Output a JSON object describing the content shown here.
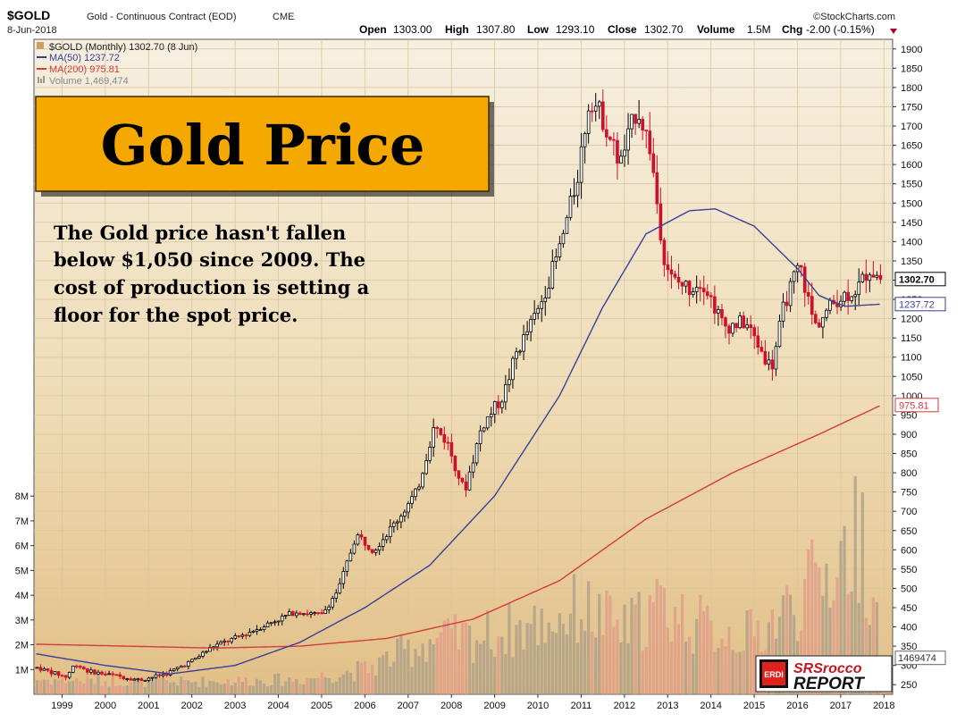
{
  "header": {
    "symbol": "$GOLD",
    "name": "Gold - Continuous Contract (EOD)",
    "exchange": "CME",
    "date": "8-Jun-2018",
    "source": "©StockCharts.com",
    "open_label": "Open",
    "open": "1303.00",
    "high_label": "High",
    "high": "1307.80",
    "low_label": "Low",
    "low": "1293.10",
    "close_label": "Close",
    "close": "1302.70",
    "volume_label": "Volume",
    "volume": "1.5M",
    "chg_label": "Chg",
    "chg": "-2.00 (-0.15%)"
  },
  "legend": {
    "main": "$GOLD (Monthly) 1302.70 (8 Jun)",
    "ma50": "MA(50) 1237.72",
    "ma200": "MA(200) 975.81",
    "volume": "Volume 1,469,474"
  },
  "title_box": {
    "text": "Gold Price"
  },
  "annotation": {
    "lines": [
      "The Gold price hasn't fallen",
      "below $1,050 since 2009.  The",
      "cost of production is setting a",
      "floor for the spot price."
    ]
  },
  "price_tags": {
    "close": "1302.70",
    "ma50": "1237.72",
    "ma200": "975.81",
    "volume": "1469474"
  },
  "logo": {
    "badge": "ERDI",
    "line1": "SRSrocco",
    "line2": "REPORT"
  },
  "colors": {
    "background_top": "#f5eedd",
    "background_bottom": "#e2c08a",
    "up_candle": "#000000",
    "down_candle": "#d0102a",
    "ma50": "#3a3f9a",
    "ma200": "#d63a3a",
    "title_box": "#f5a800"
  },
  "chart_data": {
    "type": "candlestick",
    "interval": "monthly",
    "x_ticks": [
      "1999",
      "2000",
      "2001",
      "2002",
      "2003",
      "2004",
      "2005",
      "2006",
      "2007",
      "2008",
      "2009",
      "2010",
      "2011",
      "2012",
      "2013",
      "2014",
      "2015",
      "2016",
      "2017",
      "2018"
    ],
    "y_ticks": [
      250,
      300,
      350,
      400,
      450,
      500,
      550,
      600,
      650,
      700,
      750,
      800,
      850,
      900,
      950,
      1000,
      1050,
      1100,
      1150,
      1200,
      1250,
      1300,
      1350,
      1400,
      1450,
      1500,
      1550,
      1600,
      1650,
      1700,
      1750,
      1800,
      1850,
      1900
    ],
    "ylim": [
      225,
      1925
    ],
    "volume_ticks": [
      "1M",
      "2M",
      "3M",
      "4M",
      "5M",
      "6M",
      "7M",
      "8M"
    ],
    "volume_lim": [
      0,
      8.8
    ],
    "price_anchors": [
      {
        "t": 1998.9,
        "p": 295
      },
      {
        "t": 1999.6,
        "p": 270
      },
      {
        "t": 1999.8,
        "p": 305
      },
      {
        "t": 2000.1,
        "p": 285
      },
      {
        "t": 2000.9,
        "p": 270
      },
      {
        "t": 2001.3,
        "p": 262
      },
      {
        "t": 2001.9,
        "p": 278
      },
      {
        "t": 2002.5,
        "p": 312
      },
      {
        "t": 2003.0,
        "p": 350
      },
      {
        "t": 2003.6,
        "p": 375
      },
      {
        "t": 2004.2,
        "p": 405
      },
      {
        "t": 2004.9,
        "p": 440
      },
      {
        "t": 2005.5,
        "p": 430
      },
      {
        "t": 2005.9,
        "p": 500
      },
      {
        "t": 2006.3,
        "p": 640
      },
      {
        "t": 2006.7,
        "p": 600
      },
      {
        "t": 2007.2,
        "p": 670
      },
      {
        "t": 2007.7,
        "p": 750
      },
      {
        "t": 2008.1,
        "p": 920
      },
      {
        "t": 2008.4,
        "p": 880
      },
      {
        "t": 2008.8,
        "p": 750
      },
      {
        "t": 2009.2,
        "p": 920
      },
      {
        "t": 2009.7,
        "p": 1000
      },
      {
        "t": 2010.0,
        "p": 1110
      },
      {
        "t": 2010.5,
        "p": 1220
      },
      {
        "t": 2011.0,
        "p": 1380
      },
      {
        "t": 2011.4,
        "p": 1560
      },
      {
        "t": 2011.7,
        "p": 1780
      },
      {
        "t": 2012.0,
        "p": 1720
      },
      {
        "t": 2012.4,
        "p": 1600
      },
      {
        "t": 2012.8,
        "p": 1750
      },
      {
        "t": 2013.1,
        "p": 1640
      },
      {
        "t": 2013.4,
        "p": 1370
      },
      {
        "t": 2013.6,
        "p": 1300
      },
      {
        "t": 2014.0,
        "p": 1280
      },
      {
        "t": 2014.3,
        "p": 1300
      },
      {
        "t": 2014.8,
        "p": 1180
      },
      {
        "t": 2015.3,
        "p": 1190
      },
      {
        "t": 2015.9,
        "p": 1070
      },
      {
        "t": 2016.2,
        "p": 1240
      },
      {
        "t": 2016.55,
        "p": 1340
      },
      {
        "t": 2016.9,
        "p": 1180
      },
      {
        "t": 2017.4,
        "p": 1250
      },
      {
        "t": 2017.9,
        "p": 1280
      },
      {
        "t": 2018.15,
        "p": 1330
      },
      {
        "t": 2018.44,
        "p": 1302.7
      }
    ],
    "ma50_anchors": [
      {
        "t": 1998.9,
        "p": 330
      },
      {
        "t": 2000.5,
        "p": 300
      },
      {
        "t": 2002.0,
        "p": 278
      },
      {
        "t": 2003.5,
        "p": 300
      },
      {
        "t": 2005.0,
        "p": 360
      },
      {
        "t": 2006.5,
        "p": 450
      },
      {
        "t": 2008.0,
        "p": 560
      },
      {
        "t": 2009.5,
        "p": 740
      },
      {
        "t": 2011.0,
        "p": 1000
      },
      {
        "t": 2012.0,
        "p": 1230
      },
      {
        "t": 2013.0,
        "p": 1420
      },
      {
        "t": 2014.0,
        "p": 1480
      },
      {
        "t": 2014.6,
        "p": 1485
      },
      {
        "t": 2015.5,
        "p": 1440
      },
      {
        "t": 2016.5,
        "p": 1330
      },
      {
        "t": 2017.0,
        "p": 1260
      },
      {
        "t": 2017.6,
        "p": 1232
      },
      {
        "t": 2018.44,
        "p": 1237.72
      }
    ],
    "ma200_anchors": [
      {
        "t": 1998.9,
        "p": 355
      },
      {
        "t": 2001.0,
        "p": 350
      },
      {
        "t": 2003.0,
        "p": 345
      },
      {
        "t": 2005.0,
        "p": 350
      },
      {
        "t": 2007.0,
        "p": 370
      },
      {
        "t": 2009.0,
        "p": 420
      },
      {
        "t": 2011.0,
        "p": 520
      },
      {
        "t": 2013.0,
        "p": 680
      },
      {
        "t": 2015.0,
        "p": 800
      },
      {
        "t": 2017.0,
        "p": 900
      },
      {
        "t": 2018.44,
        "p": 975.81
      }
    ],
    "volume_anchors_millions": [
      {
        "t": 1998.9,
        "v": 0.6
      },
      {
        "t": 2002.0,
        "v": 0.5
      },
      {
        "t": 2005.0,
        "v": 0.6
      },
      {
        "t": 2006.5,
        "v": 1.0
      },
      {
        "t": 2008.0,
        "v": 2.2
      },
      {
        "t": 2009.0,
        "v": 2.3
      },
      {
        "t": 2010.5,
        "v": 2.8
      },
      {
        "t": 2011.5,
        "v": 3.5
      },
      {
        "t": 2012.5,
        "v": 2.6
      },
      {
        "t": 2013.3,
        "v": 3.6
      },
      {
        "t": 2014.5,
        "v": 2.6
      },
      {
        "t": 2015.5,
        "v": 2.4
      },
      {
        "t": 2016.5,
        "v": 3.8
      },
      {
        "t": 2017.5,
        "v": 5.5
      },
      {
        "t": 2018.0,
        "v": 6.6
      },
      {
        "t": 2018.44,
        "v": 1.47
      }
    ]
  }
}
